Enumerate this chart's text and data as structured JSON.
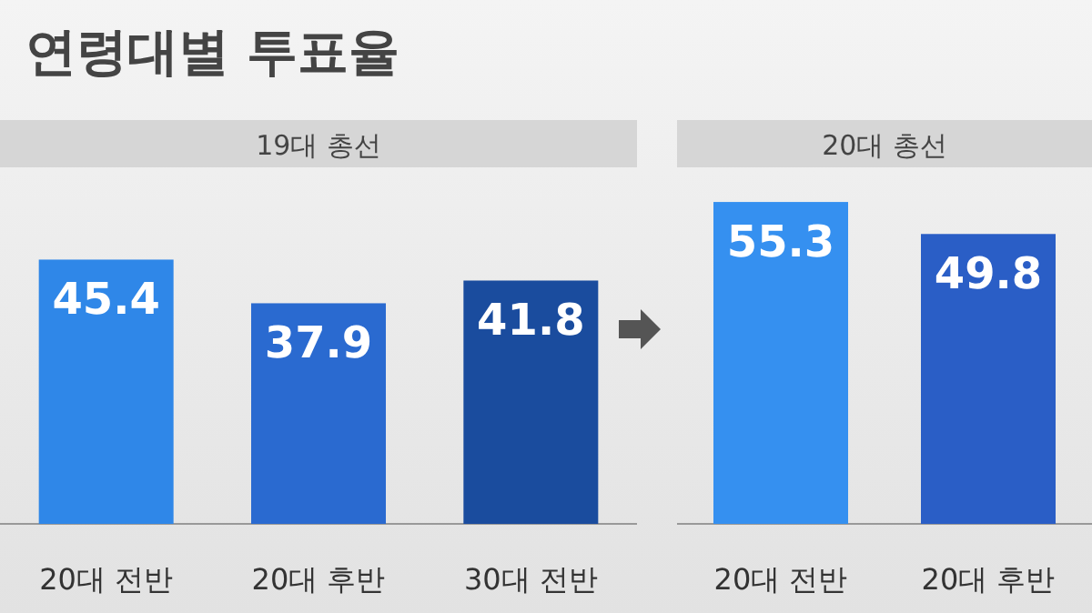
{
  "chart_data": [
    {
      "type": "other",
      "title": "연령대별 투표율"
    },
    {
      "type": "bar",
      "title": "19대 총선",
      "categories": [
        "20대 전반",
        "20대 후반",
        "30대 전반"
      ],
      "values": [
        45.4,
        37.9,
        41.8
      ],
      "colors": [
        "#2f87e8",
        "#2a6ad0",
        "#1a4c9e"
      ],
      "data_labels": true
    },
    {
      "type": "bar",
      "title": "20대 총선",
      "categories": [
        "20대 전반",
        "20대 후반"
      ],
      "values": [
        55.3,
        49.8
      ],
      "colors": [
        "#3590f0",
        "#2a5ec6"
      ],
      "data_labels": true
    }
  ]
}
